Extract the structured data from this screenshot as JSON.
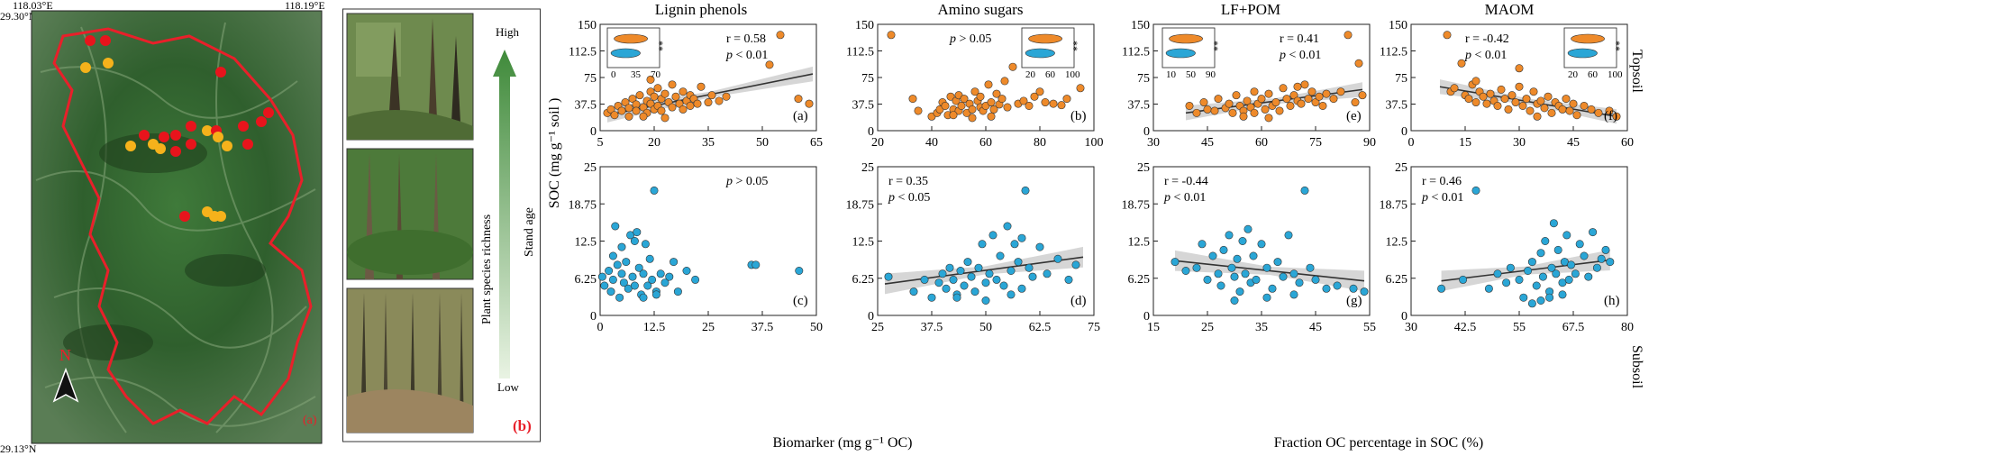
{
  "map": {
    "coord_top_left": "118.03°E",
    "coord_top_right": "118.19°E",
    "coord_left_top": "29.30°N",
    "coord_left_bottom": "29.13°N",
    "north_label": "N",
    "panel_label": "(a)",
    "colors": {
      "site_red": "#e8141c",
      "site_yellow": "#f5b21b",
      "boundary": "#e8202a"
    }
  },
  "photos": {
    "panel_label": "(b)",
    "gradient_high": "High",
    "gradient_low": "Low",
    "axis_stand_age": "Stand age",
    "axis_richness": "Plant species richness"
  },
  "figure": {
    "col_titles": [
      "Lignin phenols",
      "Amino sugars",
      "LF+POM",
      "MAOM"
    ],
    "row_labels": [
      "Topsoil",
      "Subsoil"
    ],
    "ylabel": "SOC (mg g⁻¹ soil )",
    "xlabel_left": "Biomarker (mg g⁻¹ OC)",
    "xlabel_right": "Fraction OC percentage in SOC (%)",
    "colors": {
      "topsoil": "#ee8a2a",
      "subsoil": "#2aa6d6",
      "fit": "#333333",
      "band": "#c8c8c8"
    }
  },
  "chart_data": [
    {
      "id": "a",
      "type": "scatter",
      "row": "Topsoil",
      "col": "Lignin phenols",
      "panel_label": "(a)",
      "xlim": [
        5,
        65
      ],
      "xticks": [
        "5",
        "20",
        "35",
        "50",
        "65"
      ],
      "ylim": [
        0,
        150
      ],
      "yticks": [
        "0",
        "37.5",
        "75",
        "112.5",
        "150"
      ],
      "stats": [
        "r = 0.58",
        "p < 0.01"
      ],
      "fit": {
        "x": [
          7,
          64
        ],
        "y": [
          22,
          80
        ]
      },
      "inset": {
        "xticks": [
          "0",
          "35",
          "70"
        ],
        "sig": "**"
      },
      "x": [
        7,
        8,
        9,
        10,
        11,
        12,
        13,
        13,
        14,
        15,
        15,
        16,
        17,
        18,
        18,
        19,
        19,
        20,
        20,
        21,
        21,
        22,
        22,
        23,
        24,
        25,
        25,
        26,
        27,
        28,
        29,
        30,
        30,
        31,
        32,
        33,
        35,
        36,
        38,
        40,
        52,
        55,
        60,
        63,
        17,
        23,
        19,
        28
      ],
      "y": [
        25,
        30,
        22,
        35,
        28,
        40,
        32,
        20,
        45,
        37,
        28,
        50,
        33,
        42,
        25,
        55,
        38,
        48,
        30,
        60,
        35,
        45,
        28,
        52,
        40,
        65,
        33,
        48,
        38,
        55,
        42,
        35,
        50,
        45,
        38,
        62,
        40,
        50,
        42,
        48,
        93,
        135,
        45,
        38,
        20,
        18,
        72,
        30
      ]
    },
    {
      "id": "b",
      "type": "scatter",
      "row": "Topsoil",
      "col": "Amino sugars",
      "panel_label": "(b)",
      "xlim": [
        20,
        100
      ],
      "xticks": [
        "20",
        "40",
        "60",
        "80",
        "100"
      ],
      "ylim": [
        0,
        150
      ],
      "yticks": [
        "0",
        "37.5",
        "75",
        "112.5",
        "150"
      ],
      "stats": [
        "p > 0.05"
      ],
      "inset": {
        "xticks": [
          "20",
          "60",
          "100"
        ],
        "sig": "**"
      },
      "x": [
        25,
        33,
        35,
        40,
        42,
        43,
        44,
        45,
        46,
        47,
        48,
        49,
        50,
        50,
        51,
        52,
        53,
        54,
        55,
        56,
        57,
        58,
        58,
        59,
        60,
        61,
        62,
        63,
        64,
        65,
        66,
        67,
        68,
        70,
        72,
        74,
        76,
        78,
        80,
        82,
        85,
        88,
        90,
        95,
        62,
        55,
        48
      ],
      "y": [
        135,
        45,
        28,
        20,
        25,
        30,
        40,
        35,
        22,
        48,
        30,
        42,
        28,
        50,
        35,
        45,
        25,
        38,
        30,
        55,
        42,
        33,
        48,
        28,
        35,
        65,
        40,
        30,
        52,
        37,
        45,
        70,
        33,
        90,
        38,
        42,
        35,
        48,
        55,
        40,
        38,
        36,
        45,
        60,
        20,
        18,
        22
      ]
    },
    {
      "id": "e",
      "type": "scatter",
      "row": "Topsoil",
      "col": "LF+POM",
      "panel_label": "(e)",
      "xlim": [
        30,
        90
      ],
      "xticks": [
        "30",
        "45",
        "60",
        "75",
        "90"
      ],
      "ylim": [
        0,
        150
      ],
      "yticks": [
        "0",
        "37.5",
        "75",
        "112.5",
        "150"
      ],
      "stats": [
        "r = 0.41",
        "p < 0.01"
      ],
      "fit": {
        "x": [
          39,
          88
        ],
        "y": [
          25,
          58
        ]
      },
      "inset": {
        "xticks": [
          "10",
          "50",
          "90"
        ],
        "sig": "**"
      },
      "x": [
        40,
        42,
        44,
        45,
        47,
        48,
        50,
        51,
        52,
        53,
        54,
        55,
        56,
        57,
        58,
        58,
        59,
        60,
        61,
        62,
        63,
        64,
        65,
        66,
        67,
        68,
        69,
        70,
        71,
        72,
        73,
        74,
        75,
        76,
        77,
        78,
        80,
        82,
        84,
        86,
        87,
        88,
        62,
        55,
        70
      ],
      "y": [
        35,
        25,
        40,
        30,
        28,
        45,
        32,
        38,
        25,
        50,
        35,
        28,
        42,
        33,
        55,
        25,
        38,
        45,
        30,
        52,
        35,
        40,
        28,
        60,
        45,
        35,
        50,
        42,
        38,
        65,
        45,
        55,
        40,
        48,
        35,
        52,
        45,
        55,
        135,
        40,
        95,
        50,
        18,
        20,
        62
      ]
    },
    {
      "id": "f",
      "type": "scatter",
      "row": "Topsoil",
      "col": "MAOM",
      "panel_label": "(f)",
      "xlim": [
        0,
        60
      ],
      "xticks": [
        "0",
        "15",
        "30",
        "45",
        "60"
      ],
      "ylim": [
        0,
        150
      ],
      "yticks": [
        "0",
        "37.5",
        "75",
        "112.5",
        "150"
      ],
      "stats": [
        "r = -0.42",
        "p < 0.01"
      ],
      "fit": {
        "x": [
          8,
          57
        ],
        "y": [
          62,
          20
        ]
      },
      "inset": {
        "xticks": [
          "20",
          "60",
          "100"
        ],
        "sig": "**"
      },
      "x": [
        10,
        11,
        12,
        14,
        15,
        16,
        17,
        18,
        19,
        20,
        21,
        22,
        23,
        24,
        25,
        26,
        27,
        28,
        29,
        30,
        31,
        32,
        33,
        34,
        35,
        36,
        37,
        38,
        39,
        40,
        41,
        42,
        43,
        44,
        45,
        46,
        48,
        50,
        52,
        55,
        57,
        18,
        30,
        35
      ],
      "y": [
        135,
        55,
        60,
        95,
        50,
        45,
        65,
        40,
        55,
        48,
        38,
        52,
        42,
        35,
        58,
        45,
        30,
        50,
        40,
        88,
        35,
        45,
        28,
        55,
        38,
        42,
        32,
        48,
        25,
        40,
        35,
        30,
        45,
        28,
        38,
        22,
        35,
        30,
        25,
        28,
        20,
        70,
        62,
        20
      ]
    },
    {
      "id": "c",
      "type": "scatter",
      "row": "Subsoil",
      "col": "Lignin phenols",
      "panel_label": "(c)",
      "xlim": [
        0,
        50
      ],
      "xticks": [
        "0",
        "12.5",
        "25",
        "37.5",
        "50"
      ],
      "ylim": [
        0,
        25
      ],
      "yticks": [
        "0",
        "6.25",
        "12.5",
        "18.75",
        "25"
      ],
      "stats": [
        "p > 0.05"
      ],
      "x": [
        0.5,
        1,
        2,
        2.5,
        3,
        3.5,
        4,
        4.5,
        5,
        5.5,
        6,
        6.5,
        7,
        7.5,
        8,
        8.5,
        9,
        9.5,
        10,
        10.5,
        11,
        11.5,
        12,
        12.5,
        13,
        14,
        15,
        16,
        17,
        18,
        20,
        22,
        35,
        36,
        46,
        3,
        5,
        8,
        10,
        13
      ],
      "y": [
        6.5,
        5,
        7.5,
        4,
        6,
        15,
        8.5,
        3,
        7,
        5.5,
        9,
        4.5,
        13.5,
        6.5,
        5,
        14,
        8,
        3.5,
        7,
        12,
        5,
        9.5,
        6,
        21,
        4,
        7,
        5.5,
        6.5,
        9,
        4,
        7.5,
        6,
        8.5,
        8.5,
        7.5,
        10,
        11.5,
        12.5,
        3,
        3.5
      ]
    },
    {
      "id": "d",
      "type": "scatter",
      "row": "Subsoil",
      "col": "Amino sugars",
      "panel_label": "(d)",
      "xlim": [
        25,
        85
      ],
      "xticks": [
        "25",
        "37.5",
        "50",
        "62.5",
        "75"
      ],
      "ylim": [
        0,
        25
      ],
      "yticks": [
        "0",
        "6.25",
        "12.5",
        "18.75",
        "25"
      ],
      "stats": [
        "r = 0.35",
        "p < 0.05"
      ],
      "fit": {
        "x": [
          27,
          82
        ],
        "y": [
          5.3,
          9.8
        ]
      },
      "x": [
        28,
        35,
        38,
        40,
        42,
        43,
        44,
        45,
        46,
        47,
        48,
        49,
        50,
        51,
        52,
        53,
        54,
        55,
        56,
        57,
        58,
        59,
        60,
        61,
        62,
        63,
        64,
        65,
        66,
        67,
        68,
        70,
        72,
        75,
        78,
        80,
        65,
        55,
        47,
        62
      ],
      "y": [
        6.5,
        4,
        6,
        3,
        5.5,
        7,
        4.5,
        8,
        6,
        3.5,
        7.5,
        5,
        9,
        6.5,
        4,
        8,
        12,
        5.5,
        7,
        13.5,
        6,
        10,
        5,
        15,
        7.5,
        12,
        9,
        4.5,
        21,
        8,
        6.5,
        11.5,
        7,
        9.5,
        6,
        8.5,
        13,
        2.5,
        3,
        3.5
      ]
    },
    {
      "id": "g",
      "type": "scatter",
      "row": "Subsoil",
      "col": "LF+POM",
      "panel_label": "(g)",
      "xlim": [
        15,
        55
      ],
      "xticks": [
        "15",
        "25",
        "35",
        "45",
        "55"
      ],
      "ylim": [
        0,
        25
      ],
      "yticks": [
        "0",
        "6.25",
        "12.5",
        "18.75",
        "25"
      ],
      "stats": [
        "r = -0.44",
        "p < 0.01"
      ],
      "fit": {
        "x": [
          19,
          54
        ],
        "y": [
          9.2,
          5.8
        ]
      },
      "x": [
        19,
        21,
        23,
        24,
        25,
        26,
        27,
        27.5,
        28,
        29,
        29.5,
        30,
        30.5,
        31,
        31.5,
        32,
        32.5,
        33,
        33.5,
        34,
        35,
        36,
        37,
        38,
        39,
        40,
        41,
        42,
        43,
        44,
        45,
        47,
        49,
        52,
        54,
        41,
        30,
        36
      ],
      "y": [
        9,
        7.5,
        8,
        12,
        6,
        10,
        7,
        5,
        11,
        13.5,
        8,
        6.5,
        9.5,
        4,
        12.5,
        7,
        14.5,
        5.5,
        10,
        6,
        12,
        8,
        4.5,
        9,
        6.5,
        13.5,
        7,
        5.5,
        21,
        8,
        6,
        4.5,
        5,
        4.5,
        4,
        3.5,
        2.5,
        3
      ]
    },
    {
      "id": "h",
      "type": "scatter",
      "row": "Subsoil",
      "col": "MAOM",
      "panel_label": "(h)",
      "xlim": [
        30,
        80
      ],
      "xticks": [
        "30",
        "42.5",
        "55",
        "67.5",
        "80"
      ],
      "ylim": [
        0,
        25
      ],
      "yticks": [
        "0",
        "6.25",
        "12.5",
        "18.75",
        "25"
      ],
      "stats": [
        "r = 0.46",
        "p < 0.01"
      ],
      "fit": {
        "x": [
          37,
          76
        ],
        "y": [
          5.8,
          9.3
        ]
      },
      "x": [
        37,
        42,
        45,
        48,
        50,
        52,
        53,
        55,
        56,
        57,
        58,
        59,
        60,
        60.5,
        61,
        62,
        62.5,
        63,
        63.5,
        64,
        65,
        65.5,
        66,
        66.5,
        67,
        68,
        69,
        70,
        71,
        72,
        73,
        74,
        75,
        76,
        60,
        62,
        65,
        58
      ],
      "y": [
        4.5,
        6,
        21,
        4.5,
        7,
        5.5,
        8,
        6,
        3,
        7.5,
        9,
        5,
        10.5,
        6.5,
        12.5,
        4,
        8,
        15.5,
        7,
        11,
        5.5,
        9,
        13.5,
        6,
        8.5,
        7,
        12,
        10,
        6.5,
        14,
        8,
        9.5,
        11,
        9,
        2.5,
        3,
        3.5,
        2
      ]
    }
  ]
}
